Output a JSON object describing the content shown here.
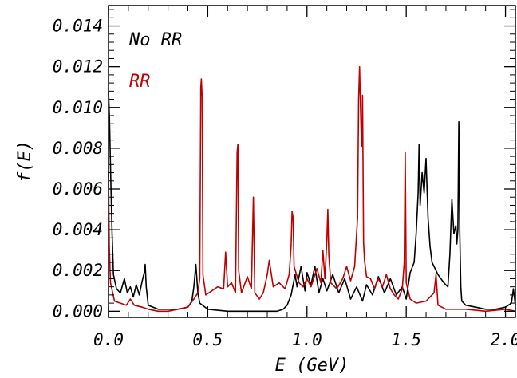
{
  "chart_data": {
    "type": "line",
    "title": "",
    "xlabel": "E (GeV)",
    "ylabel": "f(E)",
    "xlim": [
      0.0,
      2.05
    ],
    "ylim": [
      -0.0003,
      0.015
    ],
    "x_ticks": [
      0.0,
      0.5,
      1.0,
      1.5,
      2.0
    ],
    "x_tick_labels": [
      "0.0",
      "0.5",
      "1.0",
      "1.5",
      "2.0"
    ],
    "y_ticks": [
      0.0,
      0.002,
      0.004,
      0.006,
      0.008,
      0.01,
      0.012,
      0.014
    ],
    "y_tick_labels": [
      "0.000",
      "0.002",
      "0.004",
      "0.006",
      "0.008",
      "0.010",
      "0.012",
      "0.014"
    ],
    "grid": false,
    "legend_position": "top-left",
    "series": [
      {
        "name": "No RR",
        "color": "#000000",
        "points": [
          [
            0.0,
            0.0108
          ],
          [
            0.005,
            0.0095
          ],
          [
            0.012,
            0.0062
          ],
          [
            0.018,
            0.0038
          ],
          [
            0.025,
            0.0018
          ],
          [
            0.04,
            0.0011
          ],
          [
            0.06,
            0.0009
          ],
          [
            0.08,
            0.0016
          ],
          [
            0.095,
            0.0009
          ],
          [
            0.11,
            0.0012
          ],
          [
            0.125,
            0.0007
          ],
          [
            0.14,
            0.0013
          ],
          [
            0.155,
            0.0008
          ],
          [
            0.17,
            0.0015
          ],
          [
            0.18,
            0.0019
          ],
          [
            0.185,
            0.0023
          ],
          [
            0.19,
            0.0012
          ],
          [
            0.2,
            0.0003
          ],
          [
            0.25,
            0.0001
          ],
          [
            0.3,
            0.0001
          ],
          [
            0.35,
            0.0001
          ],
          [
            0.4,
            0.0002
          ],
          [
            0.42,
            0.0005
          ],
          [
            0.43,
            0.0012
          ],
          [
            0.44,
            0.0023
          ],
          [
            0.45,
            0.0009
          ],
          [
            0.46,
            0.0004
          ],
          [
            0.5,
            0.0001
          ],
          [
            0.6,
            0.0
          ],
          [
            0.7,
            0.0
          ],
          [
            0.8,
            0.0
          ],
          [
            0.85,
            0.0
          ],
          [
            0.88,
            0.0001
          ],
          [
            0.9,
            0.0003
          ],
          [
            0.92,
            0.0008
          ],
          [
            0.94,
            0.0018
          ],
          [
            0.95,
            0.0012
          ],
          [
            0.97,
            0.0022
          ],
          [
            0.99,
            0.001
          ],
          [
            1.0,
            0.0019
          ],
          [
            1.02,
            0.0013
          ],
          [
            1.04,
            0.0022
          ],
          [
            1.06,
            0.0009
          ],
          [
            1.08,
            0.0016
          ],
          [
            1.1,
            0.001
          ],
          [
            1.13,
            0.0018
          ],
          [
            1.16,
            0.0009
          ],
          [
            1.19,
            0.0016
          ],
          [
            1.22,
            0.0006
          ],
          [
            1.25,
            0.0012
          ],
          [
            1.28,
            0.0005
          ],
          [
            1.3,
            0.0013
          ],
          [
            1.33,
            0.0008
          ],
          [
            1.36,
            0.0017
          ],
          [
            1.39,
            0.0009
          ],
          [
            1.42,
            0.0016
          ],
          [
            1.45,
            0.0008
          ],
          [
            1.48,
            0.0012
          ],
          [
            1.5,
            0.0006
          ],
          [
            1.52,
            0.0019
          ],
          [
            1.54,
            0.0024
          ],
          [
            1.55,
            0.0038
          ],
          [
            1.56,
            0.0058
          ],
          [
            1.565,
            0.0082
          ],
          [
            1.57,
            0.0052
          ],
          [
            1.58,
            0.0068
          ],
          [
            1.59,
            0.0058
          ],
          [
            1.6,
            0.0075
          ],
          [
            1.61,
            0.0046
          ],
          [
            1.62,
            0.0032
          ],
          [
            1.63,
            0.0024
          ],
          [
            1.66,
            0.0018
          ],
          [
            1.69,
            0.0014
          ],
          [
            1.71,
            0.0012
          ],
          [
            1.72,
            0.0028
          ],
          [
            1.73,
            0.0055
          ],
          [
            1.74,
            0.0038
          ],
          [
            1.75,
            0.0042
          ],
          [
            1.755,
            0.0033
          ],
          [
            1.76,
            0.004
          ],
          [
            1.765,
            0.0093
          ],
          [
            1.77,
            0.0038
          ],
          [
            1.775,
            0.0012
          ],
          [
            1.78,
            0.0005
          ],
          [
            1.8,
            0.0003
          ],
          [
            1.85,
            0.0002
          ],
          [
            1.9,
            0.0001
          ],
          [
            1.95,
            0.0001
          ],
          [
            2.0,
            0.0002
          ],
          [
            2.03,
            0.0004
          ],
          [
            2.04,
            0.0011
          ],
          [
            2.05,
            0.0003
          ]
        ]
      },
      {
        "name": "RR",
        "color": "#c00000",
        "points": [
          [
            0.0,
            0.0069
          ],
          [
            0.004,
            0.0032
          ],
          [
            0.01,
            0.0014
          ],
          [
            0.03,
            0.0005
          ],
          [
            0.06,
            0.0004
          ],
          [
            0.09,
            0.0003
          ],
          [
            0.11,
            0.0006
          ],
          [
            0.13,
            0.0003
          ],
          [
            0.17,
            0.0002
          ],
          [
            0.2,
            0.0001
          ],
          [
            0.25,
            0.0
          ],
          [
            0.3,
            0.0
          ],
          [
            0.35,
            0.0001
          ],
          [
            0.4,
            0.0002
          ],
          [
            0.43,
            0.0006
          ],
          [
            0.45,
            0.0009
          ],
          [
            0.46,
            0.0016
          ],
          [
            0.465,
            0.011
          ],
          [
            0.468,
            0.0114
          ],
          [
            0.472,
            0.0105
          ],
          [
            0.476,
            0.0018
          ],
          [
            0.49,
            0.0008
          ],
          [
            0.52,
            0.001
          ],
          [
            0.55,
            0.0012
          ],
          [
            0.58,
            0.0011
          ],
          [
            0.59,
            0.0029
          ],
          [
            0.6,
            0.0012
          ],
          [
            0.62,
            0.0014
          ],
          [
            0.64,
            0.0009
          ],
          [
            0.648,
            0.0078
          ],
          [
            0.652,
            0.0082
          ],
          [
            0.656,
            0.002
          ],
          [
            0.67,
            0.0009
          ],
          [
            0.7,
            0.0017
          ],
          [
            0.72,
            0.0011
          ],
          [
            0.73,
            0.0056
          ],
          [
            0.737,
            0.0009
          ],
          [
            0.76,
            0.0006
          ],
          [
            0.78,
            0.0009
          ],
          [
            0.8,
            0.0018
          ],
          [
            0.81,
            0.0025
          ],
          [
            0.83,
            0.0012
          ],
          [
            0.86,
            0.0014
          ],
          [
            0.89,
            0.0011
          ],
          [
            0.91,
            0.0018
          ],
          [
            0.92,
            0.0032
          ],
          [
            0.925,
            0.0049
          ],
          [
            0.93,
            0.0046
          ],
          [
            0.935,
            0.0022
          ],
          [
            0.96,
            0.0014
          ],
          [
            0.98,
            0.0012
          ],
          [
            1.0,
            0.0016
          ],
          [
            1.02,
            0.0012
          ],
          [
            1.05,
            0.0021
          ],
          [
            1.07,
            0.0014
          ],
          [
            1.08,
            0.003
          ],
          [
            1.09,
            0.0016
          ],
          [
            1.1,
            0.0035
          ],
          [
            1.105,
            0.005
          ],
          [
            1.11,
            0.0028
          ],
          [
            1.12,
            0.0014
          ],
          [
            1.15,
            0.0011
          ],
          [
            1.18,
            0.0016
          ],
          [
            1.2,
            0.0022
          ],
          [
            1.22,
            0.0015
          ],
          [
            1.24,
            0.0022
          ],
          [
            1.255,
            0.0046
          ],
          [
            1.26,
            0.0104
          ],
          [
            1.265,
            0.012
          ],
          [
            1.27,
            0.0098
          ],
          [
            1.275,
            0.0081
          ],
          [
            1.28,
            0.0106
          ],
          [
            1.285,
            0.0034
          ],
          [
            1.29,
            0.0025
          ],
          [
            1.3,
            0.0017
          ],
          [
            1.32,
            0.0016
          ],
          [
            1.34,
            0.0011
          ],
          [
            1.36,
            0.0016
          ],
          [
            1.38,
            0.0012
          ],
          [
            1.4,
            0.0018
          ],
          [
            1.42,
            0.0011
          ],
          [
            1.44,
            0.0008
          ],
          [
            1.46,
            0.0006
          ],
          [
            1.48,
            0.0011
          ],
          [
            1.49,
            0.0024
          ],
          [
            1.495,
            0.0078
          ],
          [
            1.5,
            0.0014
          ],
          [
            1.52,
            0.0006
          ],
          [
            1.55,
            0.0004
          ],
          [
            1.6,
            0.0005
          ],
          [
            1.64,
            0.0009
          ],
          [
            1.65,
            0.0018
          ],
          [
            1.655,
            0.0011
          ],
          [
            1.66,
            0.0003
          ],
          [
            1.7,
            0.0001
          ],
          [
            1.8,
            0.0001
          ],
          [
            1.9,
            0.0
          ],
          [
            2.0,
            0.0001
          ],
          [
            2.05,
            0.0
          ]
        ]
      }
    ],
    "legend": [
      {
        "label": "No RR",
        "color": "#000000"
      },
      {
        "label": "RR",
        "color": "#c00000"
      }
    ]
  }
}
